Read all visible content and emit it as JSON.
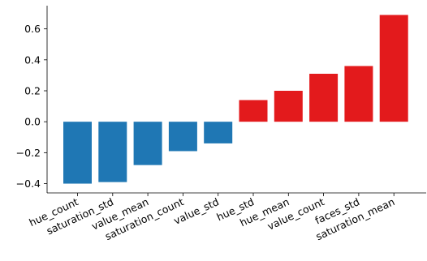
{
  "chart_data": {
    "type": "bar",
    "title": "",
    "xlabel": "",
    "ylabel": "",
    "categories": [
      "hue_count",
      "saturation_std",
      "value_mean",
      "saturation_count",
      "value_std",
      "hue_std",
      "hue_mean",
      "value_count",
      "faces_std",
      "saturation_mean"
    ],
    "values": [
      -0.4,
      -0.39,
      -0.28,
      -0.19,
      -0.14,
      0.14,
      0.2,
      0.31,
      0.36,
      0.69
    ],
    "ylim": [
      -0.46,
      0.75
    ],
    "yticks": [
      -0.4,
      -0.2,
      0.0,
      0.2,
      0.4,
      0.6
    ],
    "ytick_labels": [
      "−0.4",
      "−0.2",
      "0.0",
      "0.2",
      "0.4",
      "0.6"
    ],
    "grid": false,
    "colors": {
      "negative": "#1f77b4",
      "positive": "#e31a1c"
    }
  }
}
